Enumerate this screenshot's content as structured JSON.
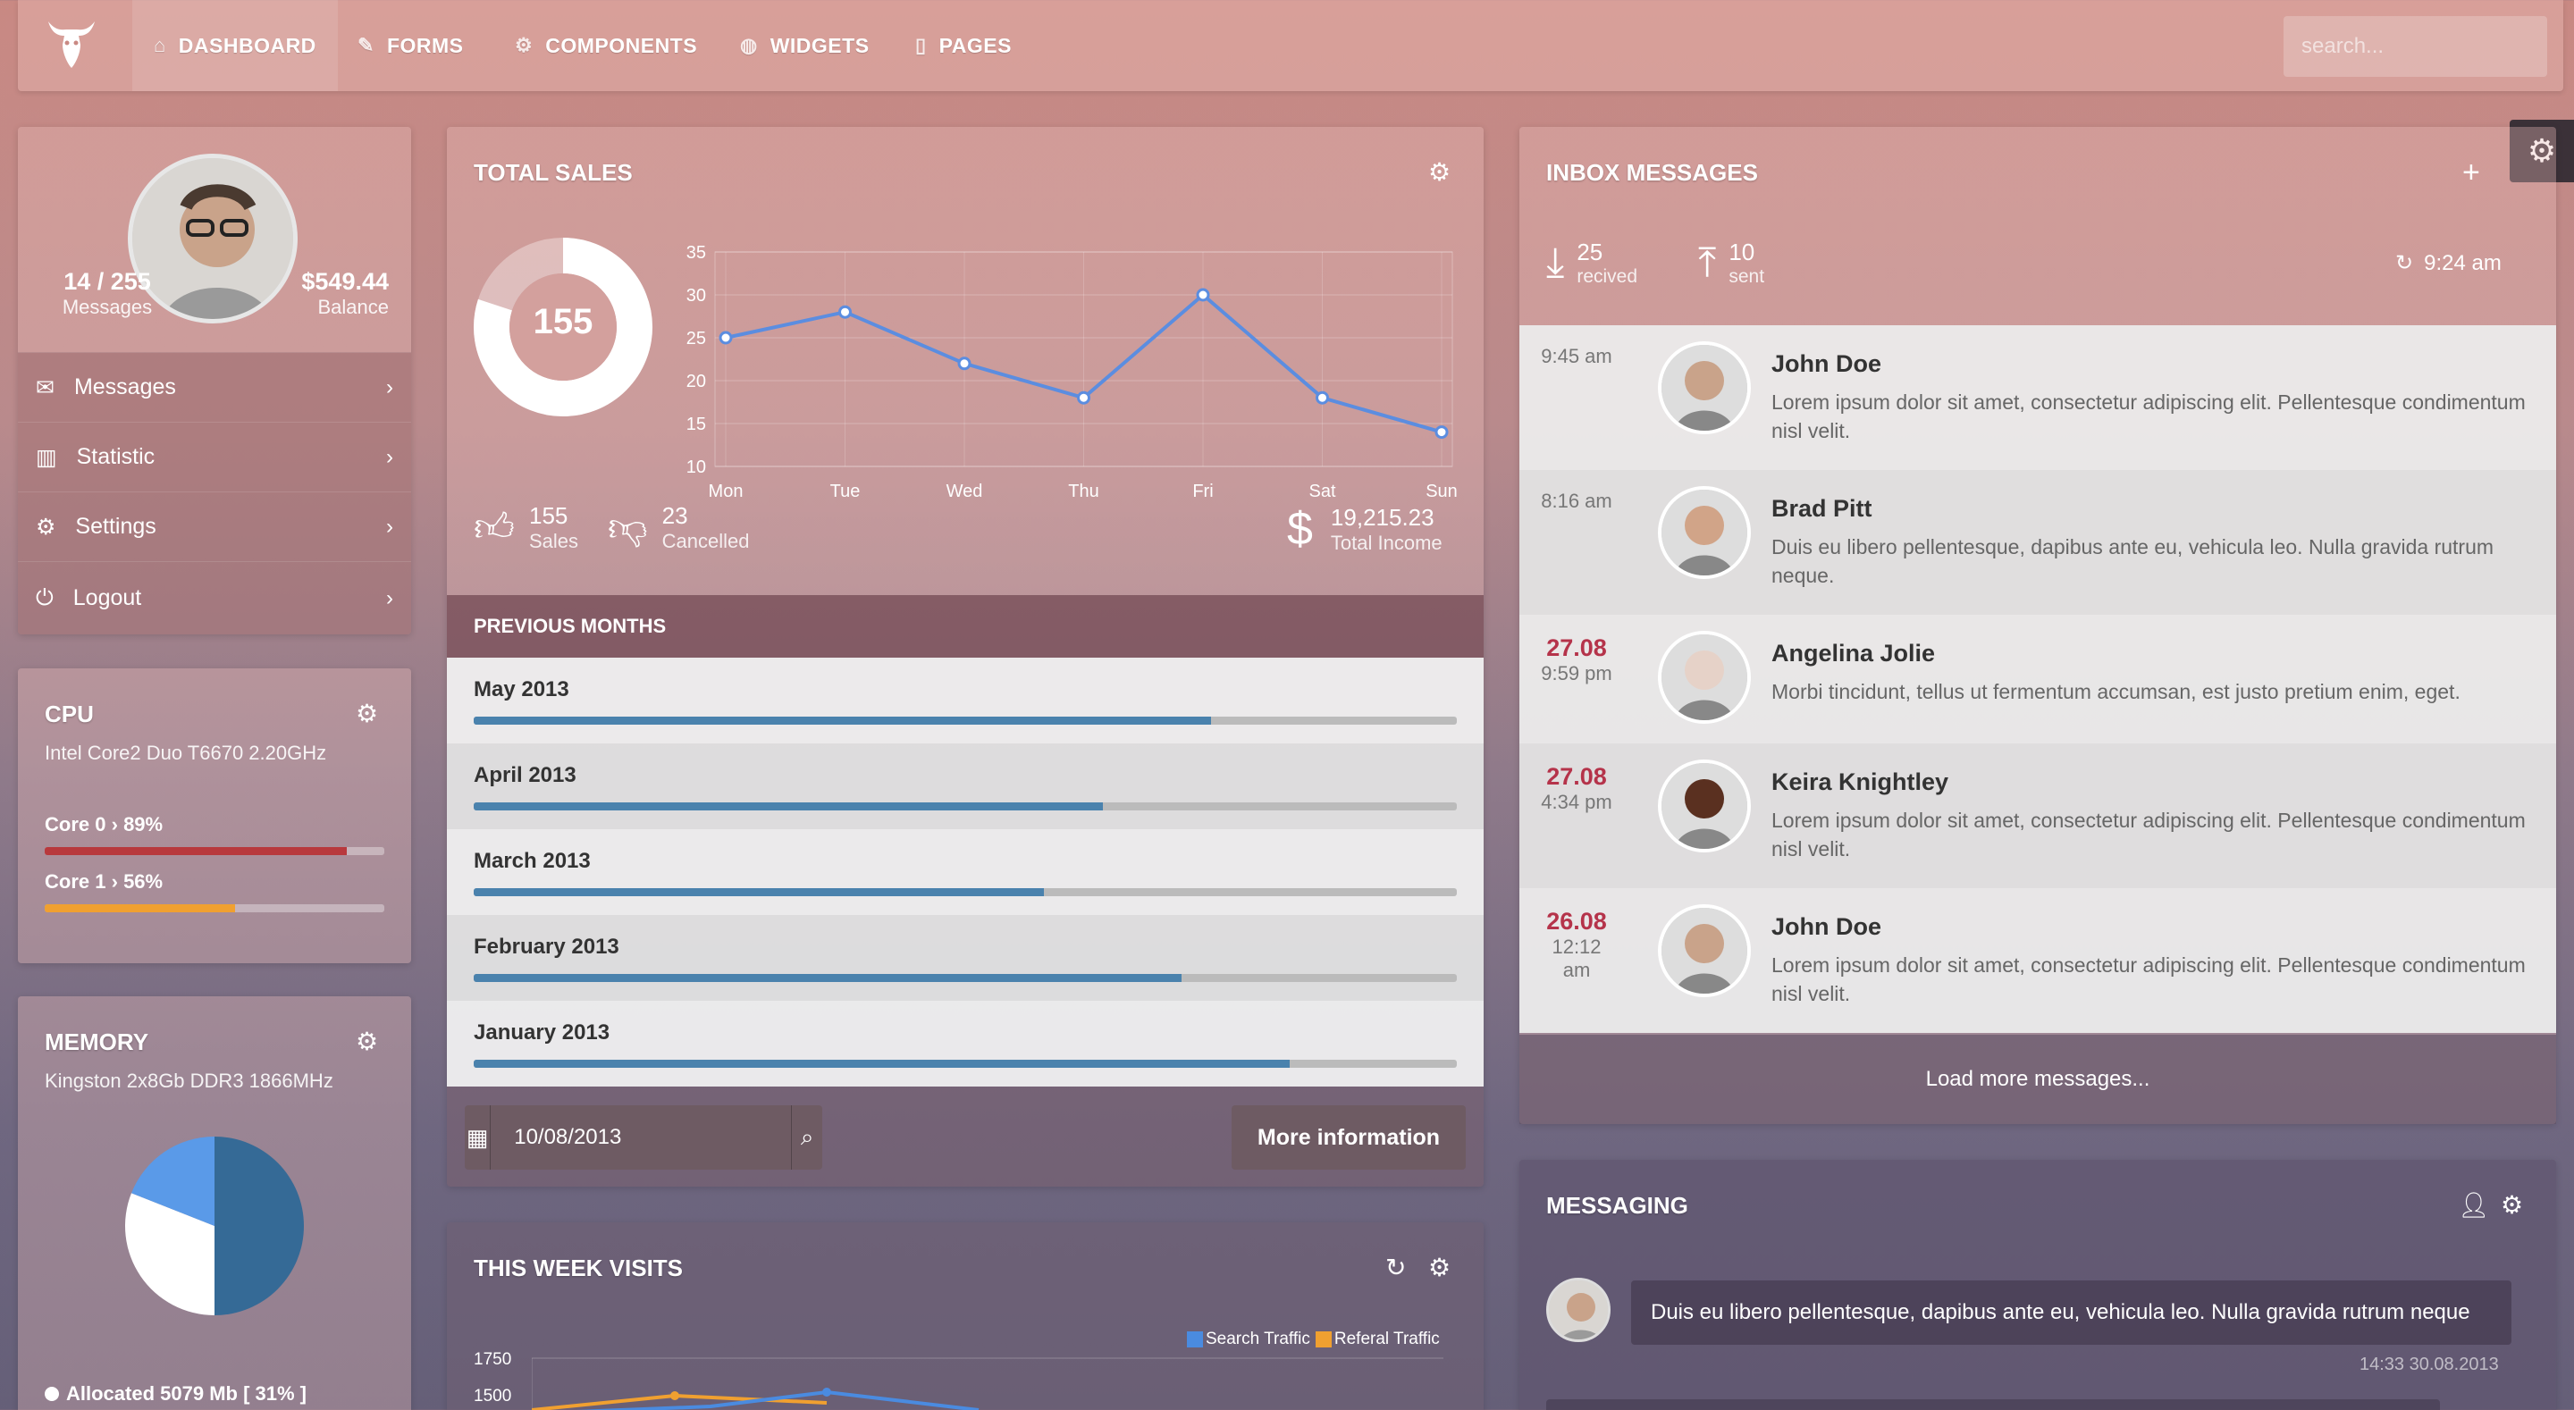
{
  "nav": {
    "items": [
      {
        "label": "DASHBOARD",
        "icon": "home-icon"
      },
      {
        "label": "FORMS",
        "icon": "pencil-icon"
      },
      {
        "label": "COMPONENTS",
        "icon": "gears-icon"
      },
      {
        "label": "WIDGETS",
        "icon": "globe-icon"
      },
      {
        "label": "PAGES",
        "icon": "file-icon"
      }
    ],
    "search_placeholder": "search..."
  },
  "profile": {
    "messages_count": "14 / 255",
    "messages_label": "Messages",
    "balance": "$549.44",
    "balance_label": "Balance",
    "menu": [
      {
        "label": "Messages",
        "icon": "envelope-icon"
      },
      {
        "label": "Statistic",
        "icon": "bar-chart-icon"
      },
      {
        "label": "Settings",
        "icon": "gears-icon"
      },
      {
        "label": "Logout",
        "icon": "power-icon"
      }
    ]
  },
  "cpu": {
    "title": "CPU",
    "model": "Intel Core2 Duo T6670 2.20GHz",
    "cores": [
      {
        "label": "Core 0",
        "sep": "›",
        "value": "89%",
        "pct": 89,
        "color": "#b8393d"
      },
      {
        "label": "Core 1",
        "sep": "›",
        "value": "56%",
        "pct": 56,
        "color": "#f0a030"
      }
    ]
  },
  "memory": {
    "title": "MEMORY",
    "model": "Kingston 2x8Gb DDR3 1866MHz",
    "allocated": "Allocated 5079 Mb [ 31% ]",
    "chart_data": {
      "type": "pie",
      "values": [
        50,
        31,
        19
      ],
      "colors": [
        "#356a96",
        "#ffffff",
        "#5a9ae8"
      ]
    }
  },
  "sales": {
    "title": "TOTAL SALES",
    "donut_value": "155",
    "donut_fraction": 0.8,
    "chart_data": {
      "type": "line",
      "categories": [
        "Mon",
        "Tue",
        "Wed",
        "Thu",
        "Fri",
        "Sat",
        "Sun"
      ],
      "values": [
        25,
        28,
        22,
        18,
        30,
        18,
        14
      ],
      "ylim": [
        10,
        35
      ],
      "yticks": [
        35,
        30,
        25,
        20,
        15,
        10
      ],
      "color": "#5b8de0"
    },
    "stats": [
      {
        "value": "155",
        "label": "Sales",
        "icon": "thumbs-up-icon"
      },
      {
        "value": "23",
        "label": "Cancelled",
        "icon": "thumbs-down-icon"
      }
    ],
    "income": {
      "value": "19,215.23",
      "label": "Total Income",
      "icon": "dollar-icon"
    },
    "previous_title": "PREVIOUS MONTHS",
    "months": [
      {
        "label": "May 2013",
        "pct": 75
      },
      {
        "label": "April 2013",
        "pct": 64
      },
      {
        "label": "March 2013",
        "pct": 58
      },
      {
        "label": "February 2013",
        "pct": 72
      },
      {
        "label": "January 2013",
        "pct": 83
      }
    ],
    "date_value": "10/08/2013",
    "more_label": "More information"
  },
  "visits": {
    "title": "THIS WEEK VISITS",
    "legend": [
      "Search Traffic",
      "Referal Traffic"
    ],
    "legend_colors": [
      "#4a8be0",
      "#f0a030"
    ],
    "yticks": [
      "1750",
      "1500"
    ]
  },
  "inbox": {
    "title": "INBOX MESSAGES",
    "received": "25",
    "received_label": "recived",
    "sent": "10",
    "sent_label": "sent",
    "time": "9:24 am",
    "messages": [
      {
        "date": "",
        "time": "9:45 am",
        "name": "John Doe",
        "text": "Lorem ipsum dolor sit amet, consectetur adipiscing elit. Pellentesque condimentum nisl velit."
      },
      {
        "date": "",
        "time": "8:16 am",
        "name": "Brad Pitt",
        "text": "Duis eu libero pellentesque, dapibus ante eu, vehicula leo. Nulla gravida rutrum neque."
      },
      {
        "date": "27.08",
        "time": "9:59 pm",
        "name": "Angelina Jolie",
        "text": "Morbi tincidunt, tellus ut fermentum accumsan, est justo pretium enim, eget."
      },
      {
        "date": "27.08",
        "time": "4:34 pm",
        "name": "Keira Knightley",
        "text": "Lorem ipsum dolor sit amet, consectetur adipiscing elit. Pellentesque condimentum nisl velit."
      },
      {
        "date": "26.08",
        "time": "12:12 am",
        "name": "John Doe",
        "text": "Lorem ipsum dolor sit amet, consectetur adipiscing elit. Pellentesque condimentum nisl velit."
      }
    ],
    "load_more": "Load more messages..."
  },
  "messaging": {
    "title": "MESSAGING",
    "message": "Duis eu libero pellentesque, dapibus ante eu, vehicula leo. Nulla gravida rutrum neque",
    "timestamp": "14:33 30.08.2013"
  }
}
